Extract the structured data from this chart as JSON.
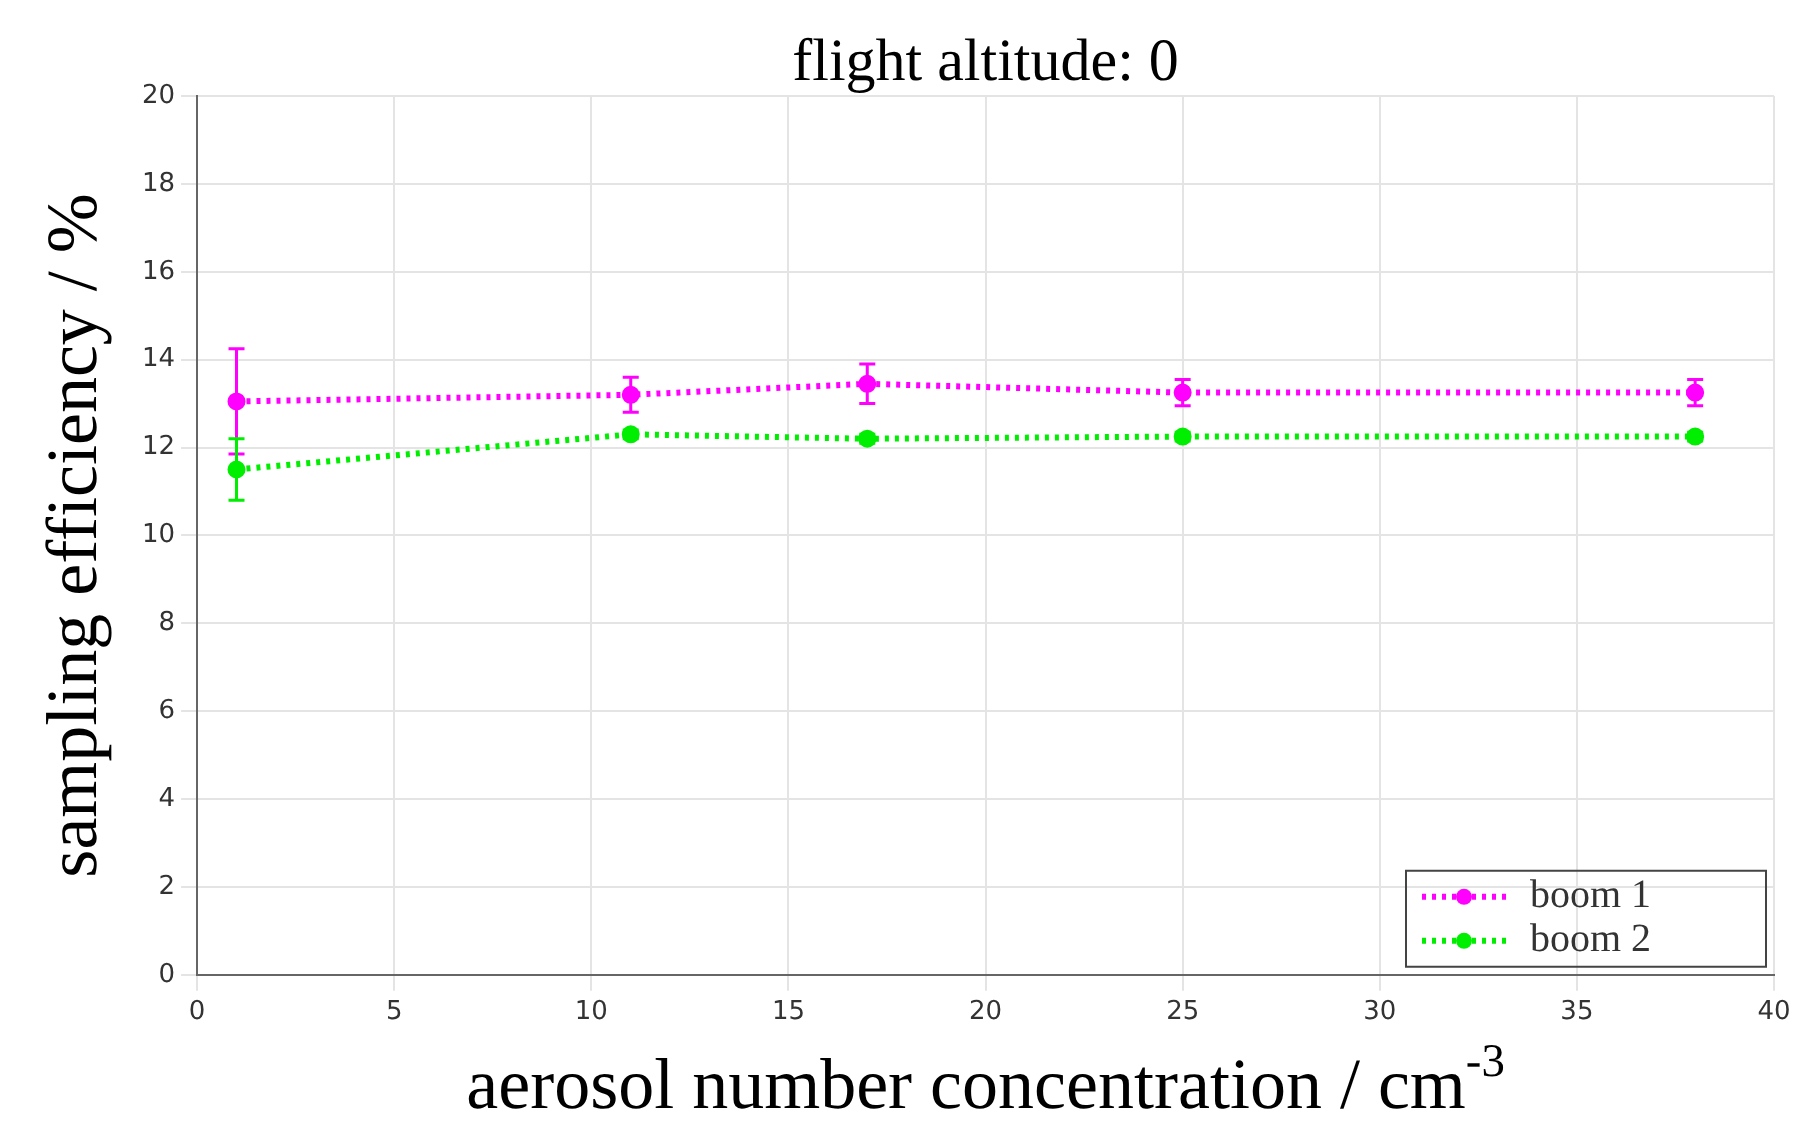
{
  "chart_data": {
    "type": "line",
    "title": "flight altitude: 0",
    "xlabel": "aerosol number concentration / cm$^{-3}$",
    "ylabel": "sampling efficiency / %",
    "x": [
      1,
      11,
      17,
      25,
      38
    ],
    "series": [
      {
        "name": "boom 1",
        "color": "#ff00ff",
        "values": [
          13.05,
          13.2,
          13.45,
          13.25,
          13.25
        ],
        "errors": [
          1.2,
          0.4,
          0.45,
          0.3,
          0.3
        ]
      },
      {
        "name": "boom 2",
        "color": "#00ee00",
        "values": [
          11.5,
          12.3,
          12.2,
          12.25,
          12.25
        ],
        "errors": [
          0.7,
          0.1,
          0.1,
          0.1,
          0.1
        ]
      }
    ],
    "xlim": [
      0,
      40
    ],
    "xticks": [
      0,
      5,
      10,
      15,
      20,
      25,
      30,
      35,
      40
    ],
    "ylim": [
      0,
      20
    ],
    "yticks": [
      0,
      2,
      4,
      6,
      8,
      10,
      12,
      14,
      16,
      18,
      20
    ],
    "grid": true,
    "legend": "bottom right",
    "marker": "circle",
    "line_style": "dotted"
  }
}
